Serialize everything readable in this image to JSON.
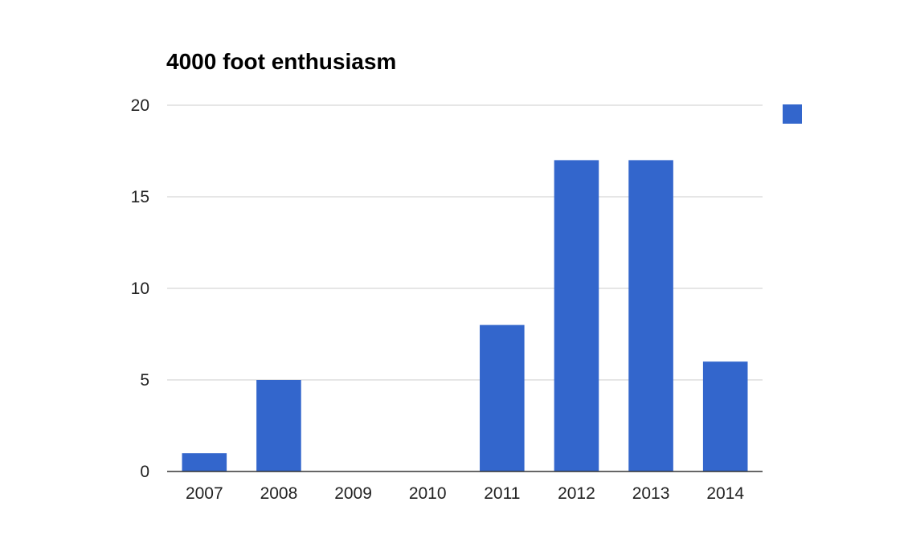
{
  "chart_data": {
    "type": "bar",
    "title": "4000 foot enthusiasm",
    "xlabel": "",
    "ylabel": "",
    "categories": [
      "2007",
      "2008",
      "2009",
      "2010",
      "2011",
      "2012",
      "2013",
      "2014"
    ],
    "values": [
      1,
      5,
      0,
      0,
      8,
      17,
      17,
      6
    ],
    "ylim": [
      0,
      20
    ],
    "yticks": [
      "0",
      "5",
      "10",
      "15",
      "20"
    ],
    "grid": true,
    "legend_position": "right",
    "series_color": "#3366cc"
  }
}
